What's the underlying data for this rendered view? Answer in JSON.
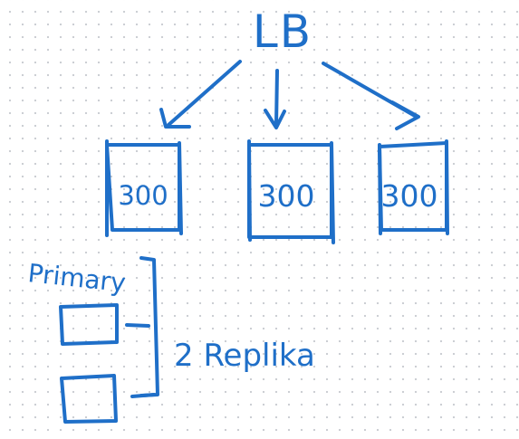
{
  "colors": {
    "ink": "#1f6fc8",
    "background": "#ffffff",
    "dots": "#c9ccd1"
  },
  "diagram": {
    "load_balancer": {
      "label": "LB"
    },
    "servers": [
      {
        "label": "300"
      },
      {
        "label": "300"
      },
      {
        "label": "300"
      }
    ],
    "database": {
      "primary_label": "Primary",
      "replica_label": "2 Replika",
      "replica_count": 2
    }
  }
}
